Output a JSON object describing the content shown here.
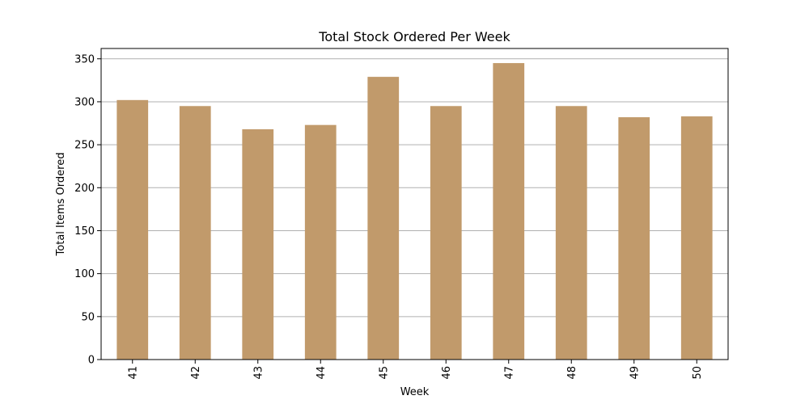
{
  "chart_data": {
    "type": "bar",
    "title": "Total Stock Ordered Per Week",
    "xlabel": "Week",
    "ylabel": "Total Items Ordered",
    "categories": [
      "41",
      "42",
      "43",
      "44",
      "45",
      "46",
      "47",
      "48",
      "49",
      "50"
    ],
    "values": [
      302,
      295,
      268,
      273,
      329,
      295,
      345,
      295,
      282,
      283
    ],
    "ylim": [
      0,
      362
    ],
    "yticks": [
      0,
      50,
      100,
      150,
      200,
      250,
      300,
      350
    ],
    "grid": "y",
    "x_tick_rotation": "vertical",
    "bar_color": "#c19a6b",
    "grid_color": "#b0b0b0"
  }
}
